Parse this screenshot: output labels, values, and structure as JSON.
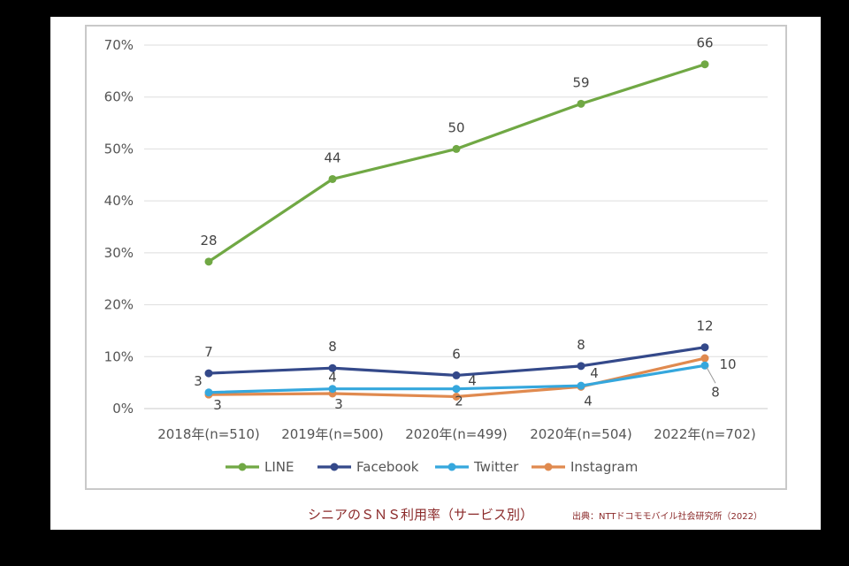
{
  "chart_data": {
    "type": "line",
    "title": "",
    "xlabel": "",
    "ylabel": "",
    "ylim": [
      0,
      70
    ],
    "yticks": [
      "0%",
      "10%",
      "20%",
      "30%",
      "40%",
      "50%",
      "60%",
      "70%"
    ],
    "categories": [
      "2018年(n=510)",
      "2019年(n=500)",
      "2020年(n=499)",
      "2020年(n=504)",
      "2022年(n=702)"
    ],
    "grid": true,
    "legend_position": "bottom",
    "series": [
      {
        "name": "LINE",
        "color": "#70a844",
        "values": [
          28.3,
          44.2,
          50,
          58.7,
          66.3
        ],
        "labels": [
          "28",
          "44",
          "50",
          "59",
          "66"
        ]
      },
      {
        "name": "Facebook",
        "color": "#34498a",
        "values": [
          6.8,
          7.8,
          6.4,
          8.2,
          11.8
        ],
        "labels": [
          "7",
          "8",
          "6",
          "8",
          "12"
        ]
      },
      {
        "name": "Twitter",
        "color": "#35a7dd",
        "values": [
          3.1,
          3.8,
          3.8,
          4.4,
          8.3
        ],
        "labels": [
          "3",
          "4",
          "4",
          "4",
          "8"
        ]
      },
      {
        "name": "Instagram",
        "color": "#e08a4f",
        "values": [
          2.7,
          2.9,
          2.3,
          4.2,
          9.7
        ],
        "labels": [
          "3",
          "3",
          "2",
          "4",
          "10"
        ]
      }
    ]
  },
  "caption": "シニアのＳＮＳ利用率（サービス別）",
  "source": "出典：NTTドコモモバイル社会研究所（2022）"
}
